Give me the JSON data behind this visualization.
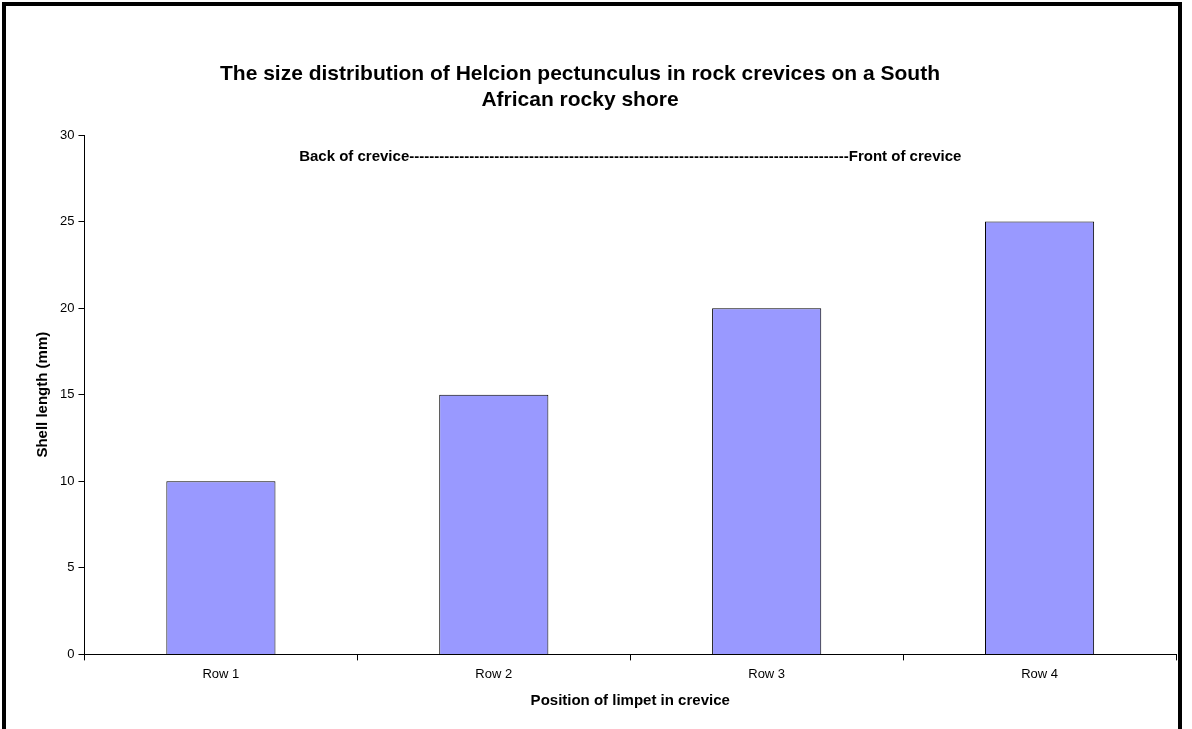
{
  "chart_data": {
    "type": "bar",
    "title": "The size distribution of Helcion pectunculus in rock crevices on a South African rocky shore",
    "xlabel": "Position of limpet in crevice",
    "ylabel": "Shell length (mm)",
    "categories": [
      "Row 1",
      "Row 2",
      "Row 3",
      "Row 4"
    ],
    "values": [
      10,
      15,
      20,
      25
    ],
    "color": "#9999ff",
    "ylim": [
      0,
      30
    ],
    "yticks": [
      0,
      5,
      10,
      15,
      20,
      25,
      30
    ],
    "grid": false,
    "annotations": [
      "Back of crevice----------------------------------------------------------------------------------------Front of crevice"
    ]
  }
}
